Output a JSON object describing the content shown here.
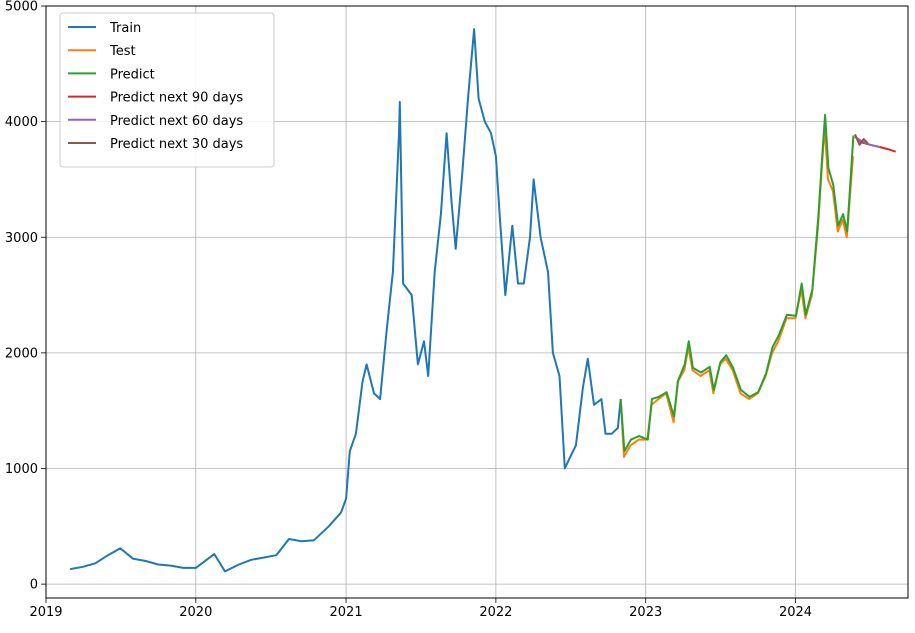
{
  "chart_data": {
    "type": "line",
    "title": "",
    "xlabel": "",
    "ylabel": "",
    "xlim": [
      "2019-01-01",
      "2024-10-01"
    ],
    "ylim": [
      -120,
      5000
    ],
    "grid": true,
    "legend_position": "upper-left",
    "x_ticks": [
      {
        "value": "2019-01-01",
        "label": "2019"
      },
      {
        "value": "2020-01-01",
        "label": "2020"
      },
      {
        "value": "2021-01-01",
        "label": "2021"
      },
      {
        "value": "2022-01-01",
        "label": "2022"
      },
      {
        "value": "2023-01-01",
        "label": "2023"
      },
      {
        "value": "2024-01-01",
        "label": "2024"
      }
    ],
    "y_ticks": [
      {
        "value": 0,
        "label": "0"
      },
      {
        "value": 1000,
        "label": "1000"
      },
      {
        "value": 2000,
        "label": "2000"
      },
      {
        "value": 3000,
        "label": "3000"
      },
      {
        "value": 4000,
        "label": "4000"
      },
      {
        "value": 5000,
        "label": "5000"
      }
    ],
    "series": [
      {
        "name": "Train",
        "color": "#1f77b4",
        "points": [
          [
            "2019-03-01",
            130
          ],
          [
            "2019-04-01",
            150
          ],
          [
            "2019-05-01",
            180
          ],
          [
            "2019-06-01",
            250
          ],
          [
            "2019-07-01",
            310
          ],
          [
            "2019-08-01",
            220
          ],
          [
            "2019-09-01",
            200
          ],
          [
            "2019-10-01",
            170
          ],
          [
            "2019-11-01",
            160
          ],
          [
            "2019-12-01",
            140
          ],
          [
            "2020-01-01",
            140
          ],
          [
            "2020-02-15",
            260
          ],
          [
            "2020-03-12",
            110
          ],
          [
            "2020-04-15",
            170
          ],
          [
            "2020-05-15",
            210
          ],
          [
            "2020-06-15",
            230
          ],
          [
            "2020-07-15",
            250
          ],
          [
            "2020-08-15",
            390
          ],
          [
            "2020-09-15",
            370
          ],
          [
            "2020-10-15",
            380
          ],
          [
            "2020-11-20",
            500
          ],
          [
            "2020-12-20",
            620
          ],
          [
            "2021-01-01",
            740
          ],
          [
            "2021-01-10",
            1150
          ],
          [
            "2021-01-25",
            1300
          ],
          [
            "2021-02-10",
            1750
          ],
          [
            "2021-02-20",
            1900
          ],
          [
            "2021-03-10",
            1650
          ],
          [
            "2021-03-25",
            1600
          ],
          [
            "2021-04-10",
            2200
          ],
          [
            "2021-04-25",
            2700
          ],
          [
            "2021-05-10",
            3900
          ],
          [
            "2021-05-12",
            4170
          ],
          [
            "2021-05-20",
            2600
          ],
          [
            "2021-06-10",
            2500
          ],
          [
            "2021-06-25",
            1900
          ],
          [
            "2021-07-10",
            2100
          ],
          [
            "2021-07-20",
            1800
          ],
          [
            "2021-08-05",
            2700
          ],
          [
            "2021-08-20",
            3200
          ],
          [
            "2021-09-03",
            3900
          ],
          [
            "2021-09-15",
            3300
          ],
          [
            "2021-09-25",
            2900
          ],
          [
            "2021-10-10",
            3500
          ],
          [
            "2021-10-25",
            4200
          ],
          [
            "2021-11-09",
            4800
          ],
          [
            "2021-11-20",
            4200
          ],
          [
            "2021-12-05",
            4000
          ],
          [
            "2021-12-20",
            3900
          ],
          [
            "2022-01-01",
            3700
          ],
          [
            "2022-01-10",
            3200
          ],
          [
            "2022-01-24",
            2500
          ],
          [
            "2022-02-10",
            3100
          ],
          [
            "2022-02-24",
            2600
          ],
          [
            "2022-03-10",
            2600
          ],
          [
            "2022-03-25",
            3000
          ],
          [
            "2022-04-03",
            3500
          ],
          [
            "2022-04-20",
            3000
          ],
          [
            "2022-05-08",
            2700
          ],
          [
            "2022-05-20",
            2000
          ],
          [
            "2022-06-05",
            1800
          ],
          [
            "2022-06-18",
            1000
          ],
          [
            "2022-07-01",
            1100
          ],
          [
            "2022-07-15",
            1200
          ],
          [
            "2022-08-01",
            1700
          ],
          [
            "2022-08-13",
            1950
          ],
          [
            "2022-08-28",
            1550
          ],
          [
            "2022-09-15",
            1600
          ],
          [
            "2022-09-25",
            1300
          ],
          [
            "2022-10-10",
            1300
          ],
          [
            "2022-10-25",
            1350
          ],
          [
            "2022-11-01",
            1600
          ]
        ]
      },
      {
        "name": "Test",
        "color": "#ff7f0e",
        "points": [
          [
            "2022-11-01",
            1600
          ],
          [
            "2022-11-09",
            1100
          ],
          [
            "2022-11-25",
            1200
          ],
          [
            "2022-12-15",
            1250
          ],
          [
            "2023-01-05",
            1250
          ],
          [
            "2023-01-15",
            1550
          ],
          [
            "2023-02-01",
            1600
          ],
          [
            "2023-02-20",
            1650
          ],
          [
            "2023-03-10",
            1400
          ],
          [
            "2023-03-20",
            1750
          ],
          [
            "2023-04-05",
            1850
          ],
          [
            "2023-04-15",
            2050
          ],
          [
            "2023-04-25",
            1850
          ],
          [
            "2023-05-15",
            1800
          ],
          [
            "2023-06-05",
            1850
          ],
          [
            "2023-06-15",
            1650
          ],
          [
            "2023-07-01",
            1900
          ],
          [
            "2023-07-15",
            1950
          ],
          [
            "2023-08-01",
            1850
          ],
          [
            "2023-08-20",
            1650
          ],
          [
            "2023-09-10",
            1600
          ],
          [
            "2023-10-01",
            1650
          ],
          [
            "2023-10-20",
            1800
          ],
          [
            "2023-11-05",
            2000
          ],
          [
            "2023-11-20",
            2100
          ],
          [
            "2023-12-10",
            2300
          ],
          [
            "2024-01-01",
            2300
          ],
          [
            "2024-01-15",
            2550
          ],
          [
            "2024-01-25",
            2300
          ],
          [
            "2024-02-10",
            2500
          ],
          [
            "2024-02-25",
            3100
          ],
          [
            "2024-03-05",
            3600
          ],
          [
            "2024-03-12",
            3950
          ],
          [
            "2024-03-20",
            3500
          ],
          [
            "2024-04-01",
            3400
          ],
          [
            "2024-04-13",
            3050
          ],
          [
            "2024-04-25",
            3150
          ],
          [
            "2024-05-05",
            3000
          ],
          [
            "2024-05-20",
            3700
          ]
        ]
      },
      {
        "name": "Predict",
        "color": "#2ca02c",
        "points": [
          [
            "2022-11-01",
            1600
          ],
          [
            "2022-11-10",
            1150
          ],
          [
            "2022-11-26",
            1250
          ],
          [
            "2022-12-16",
            1280
          ],
          [
            "2023-01-06",
            1250
          ],
          [
            "2023-01-16",
            1600
          ],
          [
            "2023-02-02",
            1620
          ],
          [
            "2023-02-21",
            1660
          ],
          [
            "2023-03-11",
            1450
          ],
          [
            "2023-03-21",
            1760
          ],
          [
            "2023-04-06",
            1900
          ],
          [
            "2023-04-16",
            2100
          ],
          [
            "2023-04-26",
            1870
          ],
          [
            "2023-05-16",
            1830
          ],
          [
            "2023-06-06",
            1880
          ],
          [
            "2023-06-16",
            1680
          ],
          [
            "2023-07-02",
            1920
          ],
          [
            "2023-07-16",
            1980
          ],
          [
            "2023-08-02",
            1870
          ],
          [
            "2023-08-21",
            1680
          ],
          [
            "2023-09-11",
            1620
          ],
          [
            "2023-10-02",
            1660
          ],
          [
            "2023-10-21",
            1820
          ],
          [
            "2023-11-06",
            2050
          ],
          [
            "2023-11-21",
            2150
          ],
          [
            "2023-12-11",
            2330
          ],
          [
            "2024-01-02",
            2320
          ],
          [
            "2024-01-16",
            2600
          ],
          [
            "2024-01-26",
            2330
          ],
          [
            "2024-02-11",
            2550
          ],
          [
            "2024-02-26",
            3200
          ],
          [
            "2024-03-06",
            3700
          ],
          [
            "2024-03-13",
            4060
          ],
          [
            "2024-03-21",
            3600
          ],
          [
            "2024-04-02",
            3450
          ],
          [
            "2024-04-14",
            3100
          ],
          [
            "2024-04-26",
            3200
          ],
          [
            "2024-05-06",
            3050
          ],
          [
            "2024-05-21",
            3880
          ]
        ]
      },
      {
        "name": "Predict next 90 days",
        "color": "#d62728",
        "points": [
          [
            "2024-05-25",
            3870
          ],
          [
            "2024-06-10",
            3820
          ],
          [
            "2024-07-01",
            3800
          ],
          [
            "2024-07-25",
            3780
          ],
          [
            "2024-08-15",
            3760
          ],
          [
            "2024-09-01",
            3740
          ]
        ]
      },
      {
        "name": "Predict next 60 days",
        "color": "#9467bd",
        "points": [
          [
            "2024-05-25",
            3870
          ],
          [
            "2024-06-10",
            3830
          ],
          [
            "2024-07-01",
            3800
          ],
          [
            "2024-07-25",
            3780
          ]
        ]
      },
      {
        "name": "Predict next 30 days",
        "color": "#8c564b",
        "points": [
          [
            "2024-05-25",
            3890
          ],
          [
            "2024-06-05",
            3800
          ],
          [
            "2024-06-15",
            3850
          ],
          [
            "2024-06-25",
            3810
          ]
        ]
      }
    ]
  }
}
